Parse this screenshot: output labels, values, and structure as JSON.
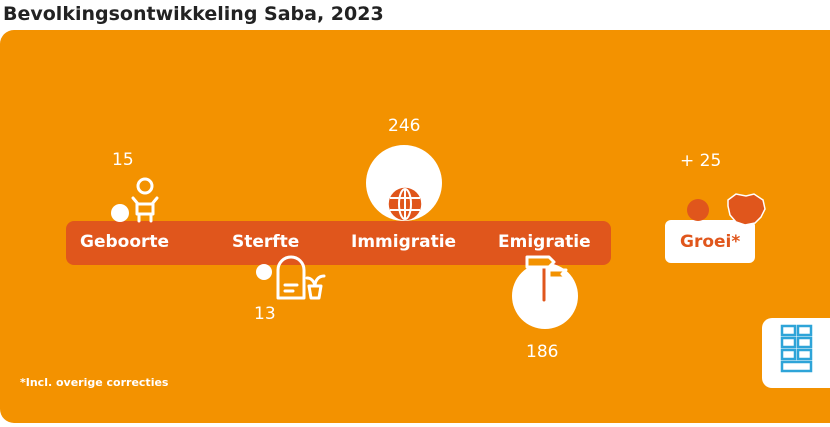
{
  "title": "Bevolkingsontwikkeling Saba, 2023",
  "colors": {
    "background": "#F39200",
    "bar": "#E0561C",
    "white": "#FFFFFF"
  },
  "categories": [
    {
      "label": "Geboorte",
      "value": "15",
      "icon": "baby-icon"
    },
    {
      "label": "Sterfte",
      "value": "13",
      "icon": "gravestone-icon"
    },
    {
      "label": "Immigratie",
      "value": "246",
      "icon": "globe-icon"
    },
    {
      "label": "Emigratie",
      "value": "186",
      "icon": "signpost-icon"
    }
  ],
  "growth": {
    "label": "Groei*",
    "value": "+ 25",
    "icon": "island-icon"
  },
  "footnote": "*Incl. overige correcties",
  "logo": {
    "icon": "cbs-logo-icon"
  }
}
